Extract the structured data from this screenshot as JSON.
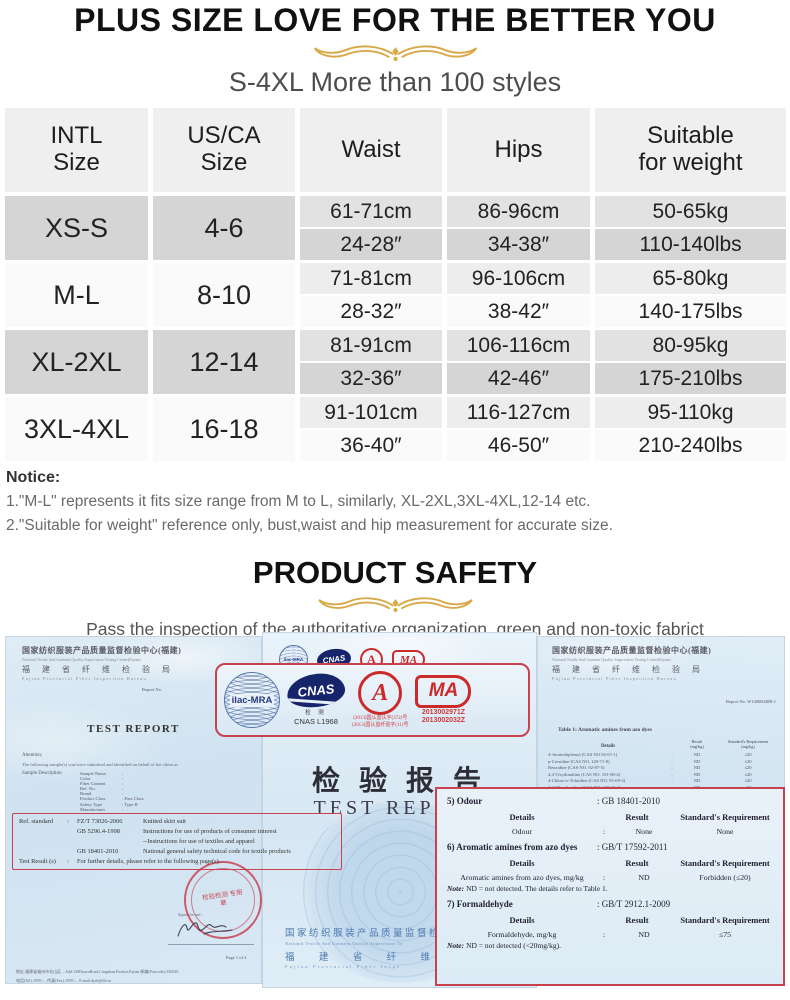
{
  "page": {
    "title": "PLUS SIZE LOVE FOR THE BETTER YOU",
    "subtitle": "S-4XL More than 100 styles"
  },
  "size_chart": {
    "columns": [
      {
        "line1": "INTL",
        "line2": "Size"
      },
      {
        "line1": "US/CA",
        "line2": "Size"
      },
      {
        "line1": "Waist",
        "line2": ""
      },
      {
        "line1": "Hips",
        "line2": ""
      },
      {
        "line1": "Suitable",
        "line2": "for weight"
      }
    ],
    "rows": [
      {
        "intl": "XS-S",
        "us": "4-6",
        "waist_cm": "61-71cm",
        "waist_in": "24-28″",
        "hips_cm": "86-96cm",
        "hips_in": "34-38″",
        "weight_kg": "50-65kg",
        "weight_lbs": "110-140lbs",
        "shade": "gray"
      },
      {
        "intl": "M-L",
        "us": "8-10",
        "waist_cm": "71-81cm",
        "waist_in": "28-32″",
        "hips_cm": "96-106cm",
        "hips_in": "38-42″",
        "weight_kg": "65-80kg",
        "weight_lbs": "140-175lbs",
        "shade": "light"
      },
      {
        "intl": "XL-2XL",
        "us": "12-14",
        "waist_cm": "81-91cm",
        "waist_in": "32-36″",
        "hips_cm": "106-116cm",
        "hips_in": "42-46″",
        "weight_kg": "80-95kg",
        "weight_lbs": "175-210lbs",
        "shade": "gray"
      },
      {
        "intl": "3XL-4XL",
        "us": "16-18",
        "waist_cm": "91-101cm",
        "waist_in": "36-40″",
        "hips_cm": "116-127cm",
        "hips_in": "46-50″",
        "weight_kg": "95-110kg",
        "weight_lbs": "210-240lbs",
        "shade": "light"
      }
    ]
  },
  "notice": {
    "label": "Notice:",
    "line1": "1.\"M-L\" represents it fits size range from M to L,  similarly, XL-2XL,3XL-4XL,12-14 etc.",
    "line2": "2.\"Suitable for weight\" reference only, bust,waist and hip measurement for accurate size."
  },
  "safety": {
    "title": "PRODUCT SAFETY",
    "subtitle": "Pass  the inspection of the authoritative organization, green and non-toxic fabrict"
  },
  "certificates": {
    "left_doc": {
      "org_cn": "国家纺织服装产品质量监督检验中心(福建)",
      "org_en": "National Textile And Garment Quality Supervision Testing Center(Fujian)",
      "bureau_cn": "福 建 省 纤 维 检 验 局",
      "bureau_en": "Fujian Provincial Fiber Inspection Bureau",
      "report_no": "Report No.",
      "title": "TEST REPORT",
      "attention": "Attention:",
      "intro": "The following sample(s) was/were submitted and identified on behalf of the client as",
      "sample_label": "Sample Description",
      "fields": [
        {
          "label": "Sample Name",
          "value": ":"
        },
        {
          "label": "Color",
          "value": ":"
        },
        {
          "label": "Fiber Content",
          "value": ":"
        },
        {
          "label": "Ref. No.",
          "value": ":"
        },
        {
          "label": "Brand",
          "value": ":"
        },
        {
          "label": "Product Class",
          "value": ":  Pass Class"
        },
        {
          "label": "Safety Type",
          "value": ":  Type B"
        },
        {
          "label": "Manufacturer",
          "value": ":"
        }
      ],
      "standards_box": {
        "ref_label": "Ref. standard",
        "colon": ":",
        "entries": [
          {
            "code": "FZ/T 73026-2006",
            "desc": "Knitted skirt suit"
          },
          {
            "code": "GB 5296.4-1998",
            "desc": "Instructions for use of products of consumer interest"
          },
          {
            "code": "",
            "desc": "--Instructions for use of textiles and apparel"
          },
          {
            "code": "GB 18401-2010",
            "desc": "National general safety technical code for textile products"
          }
        ],
        "result_label": "Test Result (s)",
        "result_text": "For further details, please refer to the following page(s)."
      },
      "stamp_text": "检验检测 专用章",
      "signed_text": "Signed for and ...",
      "page_label": "Page 1 of 3",
      "footer_line1": "地址:福建省福州市仓山区...   Add:138DaoyuRoad,Cangshan,Fuzhou,Fujian   邮编(Postcode):350026",
      "footer_line2": "电话(Tel): 0591-...   传真(Fax): 0591-...   E-mail:djxb@fib.cn"
    },
    "badge_box": {
      "ilac": "ilac-MRA",
      "cnas": "CNAS",
      "cnas_caption": "检 测",
      "cnas_code": "CNAS L1968",
      "cal": "A",
      "cal_line1": "(2013)国认监认字(372)号",
      "cal_line2": "(2013)国认监纤验字(11)号",
      "ma": "MA",
      "ma_line1": "2013002971Z",
      "ma_line2": "2013002032Z"
    },
    "middle_doc": {
      "title_cn": "检 验 报 告",
      "title_en": "TEST REPORT",
      "org_cn": "国家纺织服装产品质量监督检验",
      "org_en": "National Textile And Garment Quality Supervision Te",
      "bureau_cn": "福 建 省 纤 维 检",
      "bureau_en": "Fujian Provincial Fiber Inspe"
    },
    "right_doc": {
      "org_cn": "国家纺织服装产品质量监督检验中心(福建)",
      "org_en": "National Textile And Garment Quality Supervision Testing Center(Fujian)",
      "bureau_cn": "福 建 省 纤 维 检 验 局",
      "bureau_en": "Fujian Provincial Fiber Inspection Bureau",
      "report_no": "Report No. W14000040B-1",
      "table_title": "Table 1:   Aromatic amines from azo dyes",
      "table": {
        "headers": {
          "details": "Details",
          "result": "Result",
          "result_unit": "(mg/kg)",
          "req": "Standard's Requirement",
          "req_unit": "(mg/kg)"
        },
        "rows": [
          {
            "details": "4-Aminobiphenyl (CAS NO.92-67-1)",
            "colon": ":",
            "result": "ND",
            "req": "≤20"
          },
          {
            "details": "p-Cresidine (CAS NO. 120-71-8)",
            "colon": ":",
            "result": "ND",
            "req": "≤20"
          },
          {
            "details": "Benzidine (CAS NO. 92-87-5)",
            "colon": ":",
            "result": "ND",
            "req": "≤20"
          },
          {
            "details": "4,4'-Oxydianiline (CAS NO. 101-80-4)",
            "colon": ":",
            "result": "ND",
            "req": "≤20"
          },
          {
            "details": "4-Chloro-o-Toluidine (CAS NO. 95-69-2)",
            "colon": ":",
            "result": "ND",
            "req": "≤20"
          },
          {
            "details": "4,4'-Thiodianiline (CAS NO. 139-65-1)",
            "colon": ":",
            "result": "ND",
            "req": "≤20"
          },
          {
            "details": "2-Naphthylamine (CAS NO. 91-59-8)",
            "colon": ":",
            "result": "ND",
            "req": "≤20"
          },
          {
            "details": "o-Toluidine (CAS NO. 95-53-4)",
            "colon": ":",
            "result": "ND",
            "req": "≤20"
          },
          {
            "details": "o-Aminoazotoluene (CAS NO. 97-56-3)",
            "colon": ":",
            "result": "ND",
            "req": "≤20"
          }
        ]
      },
      "result_box": {
        "headers": {
          "details": "Details",
          "result": "Result",
          "req": "Standard's Requirement"
        },
        "note_label": "Note:",
        "sections": [
          {
            "no": "5) Odour",
            "std": ":   GB 18401-2010",
            "row": {
              "details": "Odour",
              "colon": ":",
              "result": "None",
              "req": "None"
            },
            "note": ""
          },
          {
            "no": "6) Aromatic amines from azo dyes",
            "std": ":   GB/T 17592-2011",
            "row": {
              "details": "Aromatic amines from azo dyes, mg/kg",
              "colon": ":",
              "result": "ND",
              "req": "Forbidden (≤20)"
            },
            "note": "ND = not detected. The details refer to Table 1."
          },
          {
            "no": "7) Formaldehyde",
            "std": ":   GB/T 2912.1-2009",
            "row": {
              "details": "Formaldehyde, mg/kg",
              "colon": ":",
              "result": "ND",
              "req": "≤75"
            },
            "note": "ND = not detected (<20mg/kg)."
          }
        ]
      }
    }
  },
  "colors": {
    "gold_accent": "#d8a848",
    "doc_blue": "#d7e6f2",
    "red_box": "#c8414e",
    "cnas_navy": "#16246b",
    "mark_red": "#cc2a2a",
    "row_gray": "#d5d5d5",
    "header_gray": "#efefef"
  }
}
